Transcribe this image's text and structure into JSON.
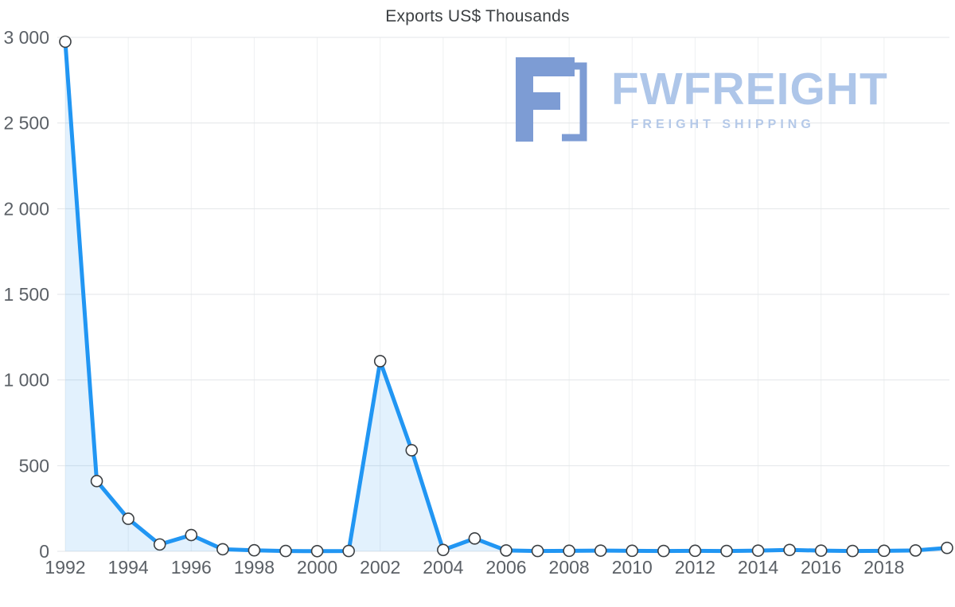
{
  "watermark": {
    "brand": "FWFREIGHT",
    "subtitle": "FREIGHT SHIPPING",
    "icon_color": "#7d9cd4",
    "text_color": "#aec6e9"
  },
  "chart_data": {
    "type": "area",
    "title": "Exports US$ Thousands",
    "xlabel": "",
    "ylabel": "",
    "x": [
      1992,
      1993,
      1994,
      1995,
      1996,
      1997,
      1998,
      1999,
      2000,
      2001,
      2002,
      2003,
      2004,
      2005,
      2006,
      2007,
      2008,
      2009,
      2010,
      2011,
      2012,
      2013,
      2014,
      2015,
      2016,
      2017,
      2018,
      2019,
      2020
    ],
    "values": [
      2975,
      410,
      190,
      40,
      95,
      12,
      6,
      2,
      1,
      2,
      1110,
      590,
      8,
      75,
      5,
      2,
      3,
      4,
      3,
      2,
      3,
      2,
      4,
      8,
      4,
      2,
      3,
      5,
      20
    ],
    "ylim": [
      0,
      3000
    ],
    "yticks": {
      "values": [
        0,
        500,
        1000,
        1500,
        2000,
        2500,
        3000
      ],
      "labels": [
        "0",
        "500",
        "1 000",
        "1 500",
        "2 000",
        "2 500",
        "3 000"
      ]
    },
    "xtick_labels": [
      "1992",
      "1994",
      "1996",
      "1998",
      "2000",
      "2002",
      "2004",
      "2006",
      "2008",
      "2010",
      "2012",
      "2014",
      "2016",
      "2018"
    ],
    "grid": true,
    "legend": "none",
    "line_color": "#2196f3",
    "fill_color": "rgba(33, 150, 243, 0.13)",
    "grid_color_h": "#e3e6e8",
    "grid_color_v": "#eef0f2",
    "marker": {
      "fill": "#ffffff",
      "stroke": "#3b3f42"
    }
  }
}
